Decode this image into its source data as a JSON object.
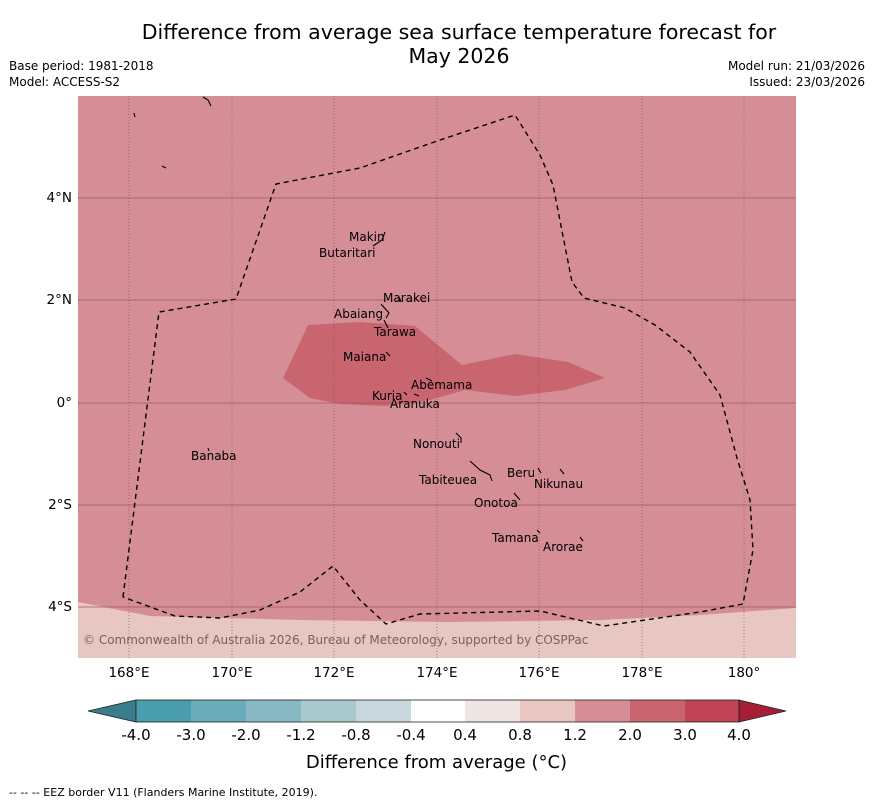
{
  "header": {
    "title_line1": "Difference from average sea surface temperature forecast for",
    "title_line2": "May 2026",
    "base_period": "Base period: 1981-2018",
    "model": "Model: ACCESS-S2",
    "model_run": "Model run: 21/03/2026",
    "issued": "Issued: 23/03/2026"
  },
  "map": {
    "lon_range": [
      167,
      181
    ],
    "lat_range": [
      -5,
      6
    ],
    "y_ticks": [
      "4°N",
      "2°N",
      "0°",
      "2°S",
      "4°S"
    ],
    "x_ticks": [
      "168°E",
      "170°E",
      "172°E",
      "174°E",
      "176°E",
      "178°E",
      "180°"
    ],
    "copyright": "© Commonwealth of Australia 2026, Bureau of Meteorology, supported by COSPPac",
    "islands": [
      {
        "name": "Makin",
        "lon": 172.95,
        "lat": 3.25
      },
      {
        "name": "Butaritari",
        "lon": 172.9,
        "lat": 3.05
      },
      {
        "name": "Marakei",
        "lon": 173.3,
        "lat": 2.0
      },
      {
        "name": "Abaiang",
        "lon": 172.9,
        "lat": 1.8
      },
      {
        "name": "Tarawa",
        "lon": 173.0,
        "lat": 1.4
      },
      {
        "name": "Maiana",
        "lon": 173.0,
        "lat": 0.95
      },
      {
        "name": "Abemama",
        "lon": 173.85,
        "lat": 0.45
      },
      {
        "name": "Kuria",
        "lon": 173.4,
        "lat": 0.22
      },
      {
        "name": "Aranuka",
        "lon": 173.6,
        "lat": 0.18
      },
      {
        "name": "Nonouti",
        "lon": 174.4,
        "lat": -0.65
      },
      {
        "name": "Banaba",
        "lon": 169.5,
        "lat": -0.87
      },
      {
        "name": "Beru",
        "lon": 176.0,
        "lat": -1.35
      },
      {
        "name": "Nikunau",
        "lon": 176.45,
        "lat": -1.38
      },
      {
        "name": "Tabiteuea",
        "lon": 174.95,
        "lat": -1.3
      },
      {
        "name": "Onotoa",
        "lon": 175.55,
        "lat": -1.8
      },
      {
        "name": "Tamana",
        "lon": 175.98,
        "lat": -2.5
      },
      {
        "name": "Arorae",
        "lon": 176.82,
        "lat": -2.65
      }
    ]
  },
  "colorbar": {
    "labels": [
      "-4.0",
      "-3.0",
      "-2.0",
      "-1.2",
      "-0.8",
      "-0.4",
      "0.4",
      "0.8",
      "1.2",
      "2.0",
      "3.0",
      "4.0"
    ],
    "colors": [
      "#4a9dac",
      "#6aacba",
      "#89b9c4",
      "#a8c9cd",
      "#c9d8dc",
      "#ffffff",
      "#efe6e3",
      "#e8c6c1",
      "#d58e95",
      "#c9656f",
      "#c04455"
    ],
    "low_color": "#3a7e8d",
    "high_color": "#a61e36",
    "title": "Difference from average (°C)"
  },
  "field": {
    "background_color": "#d58e95",
    "warm_patch_color": "#c9656f",
    "south_color": "#e8c6c1"
  },
  "footer": {
    "legend": "--  --  -- EEZ border V11 (Flanders Marine Institute, 2019)."
  }
}
